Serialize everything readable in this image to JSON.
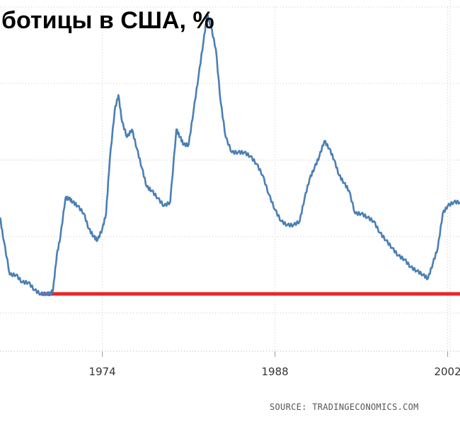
{
  "chart_data": {
    "type": "line",
    "title": "ботицы в США, %",
    "xlabel": "",
    "ylabel": "",
    "x_ticks": [
      "1974",
      "1988",
      "2002"
    ],
    "xlim": [
      1965.7,
      2003.0
    ],
    "ylim": [
      2.0,
      11.0
    ],
    "grid": true,
    "series": [
      {
        "color": "#4a7fb5",
        "x": [
          1965.7,
          1966.0,
          1966.5,
          1967.0,
          1967.5,
          1968.0,
          1968.5,
          1969.0,
          1969.5,
          1969.8,
          1970.0,
          1970.3,
          1970.6,
          1971.0,
          1971.3,
          1971.6,
          1972.0,
          1972.5,
          1972.9,
          1973.3,
          1973.6,
          1974.0,
          1974.3,
          1974.6,
          1975.0,
          1975.3,
          1975.6,
          1976.0,
          1976.4,
          1976.8,
          1977.2,
          1977.6,
          1978.0,
          1978.5,
          1979.0,
          1979.5,
          1980.0,
          1980.3,
          1980.6,
          1981.0,
          1981.4,
          1981.8,
          1982.2,
          1982.5,
          1982.8,
          1983.2,
          1983.6,
          1984.0,
          1984.5,
          1985.0,
          1985.5,
          1986.0,
          1986.5,
          1987.0,
          1987.5,
          1988.0,
          1988.5,
          1989.0,
          1989.5,
          1990.0,
          1990.4,
          1990.8,
          1991.2,
          1991.6,
          1992.0,
          1992.4,
          1992.8,
          1993.2,
          1993.6,
          1994.0,
          1994.5,
          1995.0,
          1995.5,
          1996.0,
          1996.5,
          1997.0,
          1997.5,
          1998.0,
          1998.5,
          1999.0,
          1999.5,
          2000.0,
          2000.4,
          2000.8,
          2001.2,
          2001.6,
          2002.0,
          2002.5,
          2003.0
        ],
        "y": [
          5.5,
          4.9,
          4.0,
          4.0,
          3.8,
          3.8,
          3.6,
          3.5,
          3.5,
          3.5,
          3.6,
          4.5,
          5.0,
          6.0,
          6.0,
          5.9,
          5.8,
          5.6,
          5.2,
          5.0,
          4.9,
          5.2,
          5.6,
          7.0,
          8.3,
          8.7,
          8.0,
          7.6,
          7.8,
          7.3,
          6.8,
          6.3,
          6.2,
          6.0,
          5.8,
          5.9,
          7.8,
          7.6,
          7.4,
          7.4,
          8.3,
          9.2,
          10.1,
          10.8,
          10.5,
          9.9,
          8.5,
          7.6,
          7.2,
          7.2,
          7.2,
          7.1,
          6.9,
          6.6,
          6.1,
          5.7,
          5.4,
          5.3,
          5.3,
          5.4,
          6.0,
          6.5,
          6.8,
          7.1,
          7.5,
          7.3,
          7.0,
          6.6,
          6.4,
          6.2,
          5.6,
          5.6,
          5.5,
          5.4,
          5.1,
          4.9,
          4.7,
          4.5,
          4.4,
          4.2,
          4.1,
          4.0,
          3.9,
          4.3,
          4.7,
          5.6,
          5.8,
          5.9,
          5.9
        ]
      }
    ],
    "reference_line": {
      "y": 3.5,
      "color": "#e8272a"
    }
  },
  "source_text": "SOURCE:  TRADINGECONOMICS.COM"
}
